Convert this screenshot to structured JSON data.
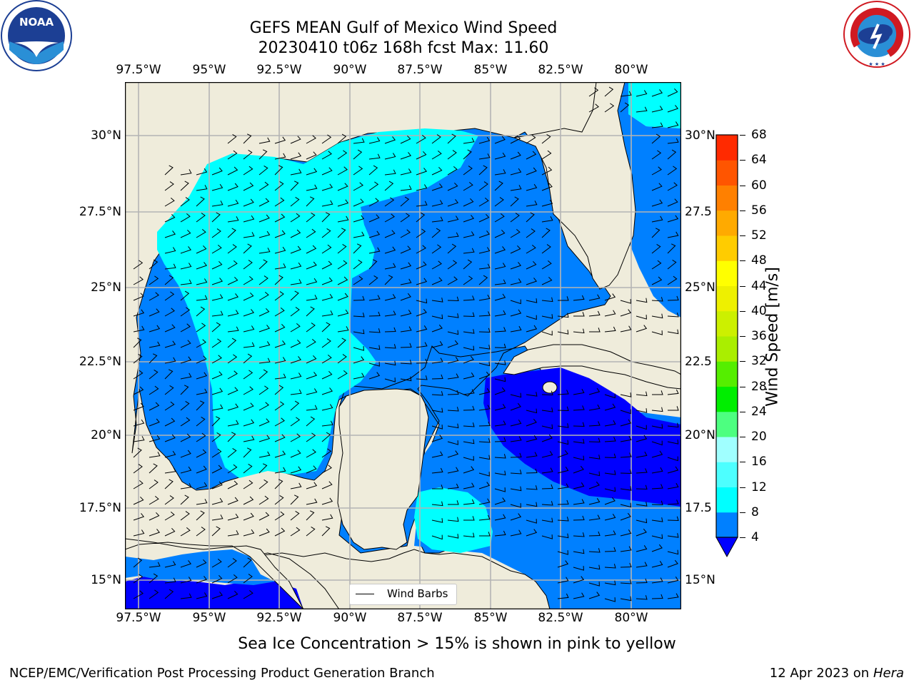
{
  "title": {
    "line1": "GEFS MEAN Gulf of Mexico Wind Speed",
    "line2": "20230410 t06z 168h fcst   Max: 11.60"
  },
  "logos": {
    "noara": "NOAA",
    "noaa_ring": "NATIONAL OCEANIC AND ATMOSPHERIC ADMINISTRATION · U.S. DEPARTMENT OF COMMERCE",
    "nws_ring": "NATIONAL WEATHER SERVICE"
  },
  "map": {
    "lon_ticks": [
      "97.5°W",
      "95°W",
      "92.5°W",
      "90°W",
      "87.5°W",
      "85°W",
      "82.5°W",
      "80°W"
    ],
    "lat_ticks_left": [
      "30°N",
      "27.5°N",
      "25°N",
      "22.5°N",
      "20°N",
      "17.5°N",
      "15°N"
    ],
    "lat_ticks_right": [
      "30°N",
      "27.5",
      "25°N",
      "22.5",
      "20°N",
      "17.5",
      "15°N"
    ],
    "legend_label": "Wind Barbs",
    "colors": {
      "land": "#efecdb",
      "sea_4_8": "#0080ff",
      "sea_8_12": "#00ffff",
      "sea_lt4": "#0000ff",
      "grid": "#b4b4b4"
    }
  },
  "colorbar": {
    "title": "Wind Speed [m/s]",
    "levels": [
      "4",
      "8",
      "12",
      "16",
      "20",
      "24",
      "28",
      "32",
      "36",
      "40",
      "44",
      "48",
      "52",
      "56",
      "60",
      "64",
      "68"
    ],
    "colors": [
      "#0080ff",
      "#00ffff",
      "#4dffff",
      "#a0ffff",
      "#4dff80",
      "#00ee00",
      "#55ee00",
      "#aaee00",
      "#ccf000",
      "#eef000",
      "#ffff00",
      "#ffcc00",
      "#ffaa00",
      "#ff8000",
      "#ff5500",
      "#ff2a00"
    ],
    "under_color": "#0000ff"
  },
  "footer": {
    "subtitle": "Sea Ice Concentration > 15% is shown in pink to yellow",
    "credit": "NCEP/EMC/Verification Post Processing Product Generation Branch",
    "date": "12 Apr 2023 on",
    "host": "Hera"
  }
}
